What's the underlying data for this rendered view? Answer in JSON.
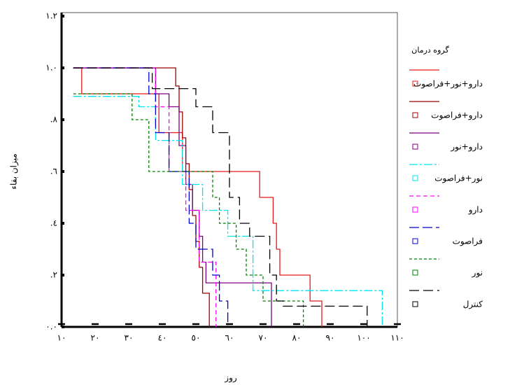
{
  "chart_data": {
    "type": "step",
    "xlabel": "روز",
    "ylabel": "میزان بقاء",
    "legend_title": "گروه درمان",
    "xlim": [
      10,
      110
    ],
    "xticks": [
      {
        "value": 10,
        "label": "١٠"
      },
      {
        "value": 20,
        "label": "٢٠"
      },
      {
        "value": 30,
        "label": "٣٠"
      },
      {
        "value": 40,
        "label": "٤٠"
      },
      {
        "value": 50,
        "label": "٥٠"
      },
      {
        "value": 60,
        "label": "٦٠"
      },
      {
        "value": 70,
        "label": "٧٠"
      },
      {
        "value": 80,
        "label": "٨٠"
      },
      {
        "value": 90,
        "label": "٩٠"
      },
      {
        "value": 100,
        "label": "١٠٠"
      },
      {
        "value": 110,
        "label": "١١٠"
      }
    ],
    "ylim": [
      0,
      1.2
    ],
    "yticks": [
      {
        "value": 0,
        "label": "٠.٠"
      },
      {
        "value": 0.2,
        "label": ".٢"
      },
      {
        "value": 0.4,
        "label": ".٤"
      },
      {
        "value": 0.6,
        "label": ".٦"
      },
      {
        "value": 0.8,
        "label": ".٨"
      },
      {
        "value": 1.0,
        "label": "١.٠"
      },
      {
        "value": 1.2,
        "label": "١.٢"
      }
    ],
    "legend": "right",
    "series": [
      {
        "name": "دارو+نور+فراصوت",
        "color": "#e41a1c",
        "dash": "none",
        "x": [
          13.5,
          16,
          39,
          46,
          69,
          73,
          74,
          75,
          84,
          87.5
        ],
        "values": [
          1.0,
          0.9,
          0.75,
          0.6,
          0.5,
          0.4,
          0.3,
          0.2,
          0.1,
          0
        ]
      },
      {
        "name": "دارو+فراصوت",
        "color": "#a00000",
        "dash": "none",
        "x": [
          13.5,
          44,
          45,
          46,
          47,
          48,
          49,
          50,
          51,
          52,
          54
        ],
        "values": [
          1.0,
          0.93,
          0.83,
          0.73,
          0.63,
          0.53,
          0.43,
          0.33,
          0.23,
          0.13,
          0
        ]
      },
      {
        "name": "دارو+نور",
        "color": "#800080",
        "dash": "none",
        "x": [
          13.5,
          38,
          42,
          45,
          47,
          49,
          51,
          52,
          53,
          72.5
        ],
        "values": [
          1.0,
          0.9,
          0.85,
          0.7,
          0.55,
          0.45,
          0.35,
          0.25,
          0.17,
          0
        ]
      },
      {
        "name": "نور+فراصوت",
        "color": "#00e5ee",
        "dash": "12 3 3 3",
        "x": [
          13.5,
          33,
          38,
          46,
          52,
          59.5,
          67,
          105.5
        ],
        "values": [
          0.89,
          0.85,
          0.72,
          0.55,
          0.45,
          0.35,
          0.14,
          0
        ]
      },
      {
        "name": "دارو",
        "color": "#ff00ff",
        "dash": "6 4",
        "x": [
          13.5,
          38,
          42,
          47,
          51,
          56
        ],
        "values": [
          1.0,
          0.85,
          0.6,
          0.45,
          0.25,
          0
        ]
      },
      {
        "name": "فراصوت",
        "color": "#0000cc",
        "dash": "14 5",
        "x": [
          13.5,
          36,
          38,
          42,
          48,
          50,
          55,
          57,
          59.5
        ],
        "values": [
          1.0,
          0.9,
          0.75,
          0.6,
          0.4,
          0.3,
          0.2,
          0.1,
          0
        ]
      },
      {
        "name": "نور",
        "color": "#008000",
        "dash": "4 3",
        "x": [
          13.5,
          31,
          36,
          55,
          57,
          62,
          65,
          70,
          82
        ],
        "values": [
          0.9,
          0.8,
          0.6,
          0.5,
          0.4,
          0.3,
          0.2,
          0.1,
          0
        ]
      },
      {
        "name": "کنترل",
        "color": "#000000",
        "dash": "14 6",
        "x": [
          13.5,
          37,
          50,
          55,
          60,
          63,
          66,
          72,
          74,
          76,
          101
        ],
        "values": [
          1.0,
          0.92,
          0.85,
          0.75,
          0.5,
          0.4,
          0.35,
          0.2,
          0.1,
          0.08,
          0
        ]
      }
    ]
  }
}
